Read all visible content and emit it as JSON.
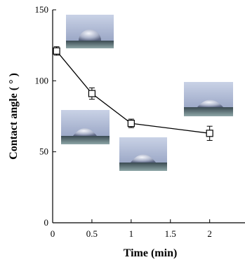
{
  "chart_data": {
    "type": "line",
    "xlabel": "Time (min)",
    "ylabel": "Contact angle ( ° )",
    "xlim": [
      0,
      2.45
    ],
    "ylim": [
      0,
      150
    ],
    "x_ticks": [
      "0",
      "0.5",
      "1",
      "1.5",
      "2"
    ],
    "x_tick_values": [
      0,
      0.5,
      1,
      1.5,
      2
    ],
    "y_ticks": [
      "0",
      "50",
      "100",
      "150"
    ],
    "y_tick_values": [
      0,
      50,
      100,
      150
    ],
    "series": [
      {
        "x": [
          0.05,
          0.5,
          1.0,
          2.0
        ],
        "y": [
          121,
          91,
          70,
          63
        ],
        "error": [
          3,
          4,
          3,
          5
        ],
        "marker": "open-square",
        "color": "#000000"
      }
    ],
    "grid": false,
    "insets": [
      {
        "name": "droplet-photo",
        "near_x": 0.05,
        "description_only": true
      },
      {
        "name": "droplet-photo",
        "near_x": 0.5,
        "description_only": true
      },
      {
        "name": "droplet-photo",
        "near_x": 1.0,
        "description_only": true
      },
      {
        "name": "droplet-photo",
        "near_x": 2.0,
        "description_only": true
      }
    ]
  }
}
